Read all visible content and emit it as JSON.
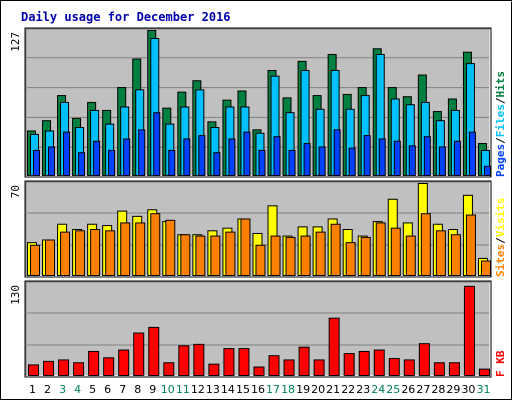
{
  "chart_data": {
    "type": "bar",
    "title": "Daily usage for December 2016",
    "days": [
      "1",
      "2",
      "3",
      "4",
      "5",
      "6",
      "7",
      "8",
      "9",
      "10",
      "11",
      "12",
      "13",
      "14",
      "15",
      "16",
      "17",
      "18",
      "19",
      "20",
      "21",
      "22",
      "23",
      "24",
      "25",
      "26",
      "27",
      "28",
      "29",
      "30",
      "31"
    ],
    "weekend_days": [
      "3",
      "4",
      "10",
      "11",
      "17",
      "18",
      "24",
      "25",
      "31"
    ],
    "colors": {
      "hits": "#008040",
      "files": "#00c0ff",
      "pages": "#0040ff",
      "visits": "#ffff00",
      "sites": "#ff8000",
      "kbytes": "#ff0000",
      "panel_bg": "#c0c0c0",
      "weekday_label": "#000000",
      "weekend_label": "#00805c"
    },
    "panels": [
      {
        "ymax_label": "127",
        "ymax": 127,
        "legend": [
          {
            "text": "Hits",
            "color": "#008040"
          },
          {
            "text": "/",
            "color": "#000000"
          },
          {
            "text": "Files",
            "color": "#00c0ff"
          },
          {
            "text": "/",
            "color": "#000000"
          },
          {
            "text": "Pages",
            "color": "#0040ff"
          }
        ],
        "series": [
          {
            "name": "Hits",
            "color": "#008040",
            "values": [
              39,
              48,
              70,
              50,
              64,
              57,
              77,
              102,
              127,
              59,
              73,
              83,
              47,
              66,
              74,
              40,
              92,
              68,
              100,
              70,
              106,
              71,
              77,
              111,
              77,
              69,
              88,
              56,
              67,
              108,
              28
            ]
          },
          {
            "name": "Files",
            "color": "#00c0ff",
            "values": [
              36,
              39,
              64,
              42,
              57,
              45,
              60,
              75,
              120,
              45,
              60,
              75,
              42,
              60,
              60,
              37,
              87,
              55,
              92,
              58,
              92,
              58,
              70,
              106,
              67,
              62,
              64,
              48,
              57,
              98,
              22
            ]
          },
          {
            "name": "Pages",
            "color": "#0040ff",
            "values": [
              22,
              25,
              38,
              20,
              30,
              22,
              32,
              40,
              55,
              22,
              32,
              35,
              20,
              32,
              38,
              22,
              34,
              22,
              28,
              25,
              40,
              24,
              35,
              32,
              30,
              26,
              34,
              25,
              30,
              38,
              8
            ]
          }
        ]
      },
      {
        "ymax_label": "70",
        "ymax": 70,
        "legend": [
          {
            "text": "Visits",
            "color": "#ffff00"
          },
          {
            "text": "/",
            "color": "#000000"
          },
          {
            "text": "Sites",
            "color": "#ff8000"
          }
        ],
        "series": [
          {
            "name": "Visits",
            "color": "#ffff00",
            "values": [
              25,
              27,
              39,
              35,
              39,
              38,
              49,
              45,
              50,
              41,
              31,
              31,
              34,
              36,
              43,
              32,
              53,
              30,
              37,
              37,
              43,
              35,
              30,
              41,
              58,
              40,
              70,
              39,
              35,
              61,
              13
            ]
          },
          {
            "name": "Sites",
            "color": "#ff8000",
            "values": [
              23,
              27,
              33,
              34,
              35,
              34,
              40,
              40,
              47,
              42,
              31,
              30,
              30,
              33,
              43,
              23,
              30,
              29,
              30,
              33,
              39,
              25,
              29,
              40,
              36,
              30,
              47,
              34,
              31,
              46,
              11
            ]
          }
        ]
      },
      {
        "ymax_label": "130",
        "ymax": 130,
        "legend": [
          {
            "text": "KB",
            "color": "#ff0000"
          },
          {
            "text": "F",
            "color": "#ff0000"
          }
        ],
        "series": [
          {
            "name": "KB F",
            "color": "#ff0000",
            "values": [
              15,
              20,
              22,
              18,
              34,
              25,
              36,
              60,
              68,
              18,
              42,
              44,
              16,
              38,
              38,
              12,
              28,
              22,
              40,
              22,
              81,
              31,
              34,
              36,
              24,
              22,
              45,
              18,
              18,
              126,
              9
            ]
          }
        ]
      }
    ]
  }
}
